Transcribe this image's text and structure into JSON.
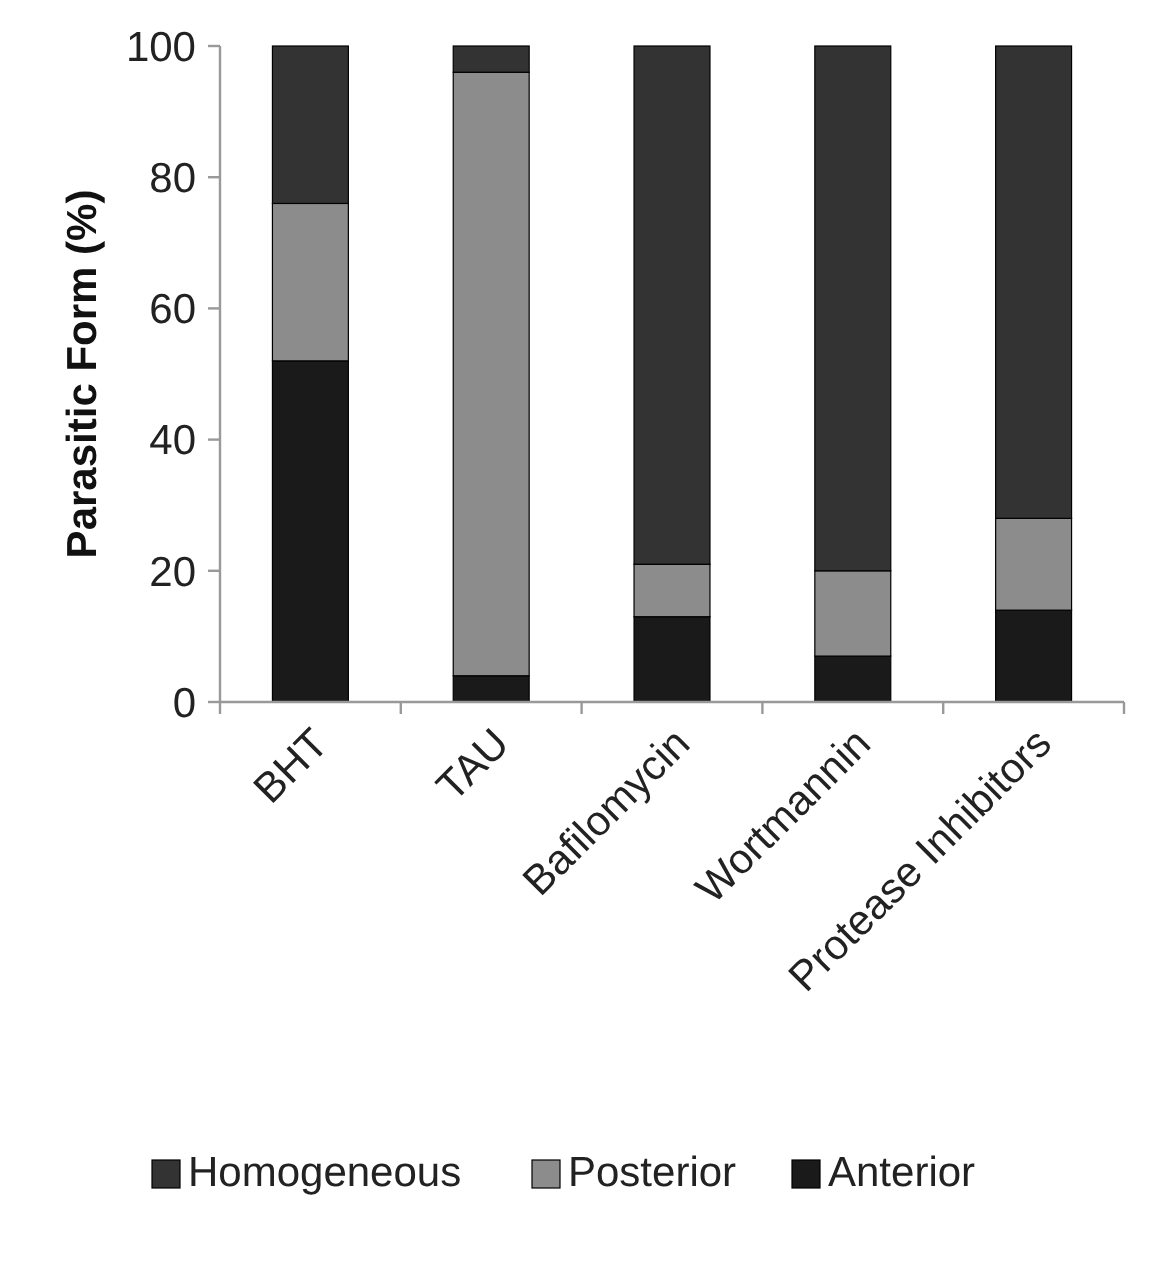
{
  "chart_data": {
    "type": "bar",
    "stacked": true,
    "ylabel": "Parasitic Form (%)",
    "categories": [
      "BHT",
      "TAU",
      "Bafilomycin",
      "Wortmannin",
      "Protease Inhibitors"
    ],
    "series": [
      {
        "name": "Anterior",
        "color": "#1a1a1a",
        "values": [
          52,
          4,
          13,
          7,
          14
        ]
      },
      {
        "name": "Posterior",
        "color": "#8c8c8c",
        "values": [
          24,
          92,
          8,
          13,
          14
        ]
      },
      {
        "name": "Homogeneous",
        "color": "#333333",
        "values": [
          24,
          4,
          79,
          80,
          72
        ]
      }
    ],
    "ylim": [
      0,
      100
    ],
    "yticks": [
      0,
      20,
      40,
      60,
      80,
      100
    ],
    "grid": false,
    "legend": "bottom"
  }
}
